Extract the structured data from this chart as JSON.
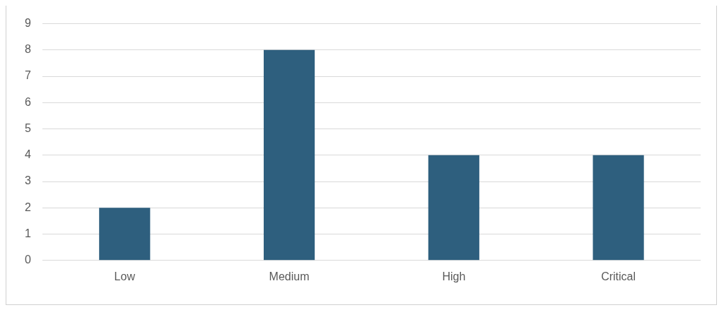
{
  "chart_data": {
    "type": "bar",
    "categories": [
      "Low",
      "Medium",
      "High",
      "Critical"
    ],
    "values": [
      2,
      8,
      4,
      4
    ],
    "color": "#2e5f7e",
    "ylim": [
      0,
      9
    ],
    "yticks": [
      0,
      1,
      2,
      3,
      4,
      5,
      6,
      7,
      8,
      9
    ],
    "grid": "y",
    "legend": false
  }
}
